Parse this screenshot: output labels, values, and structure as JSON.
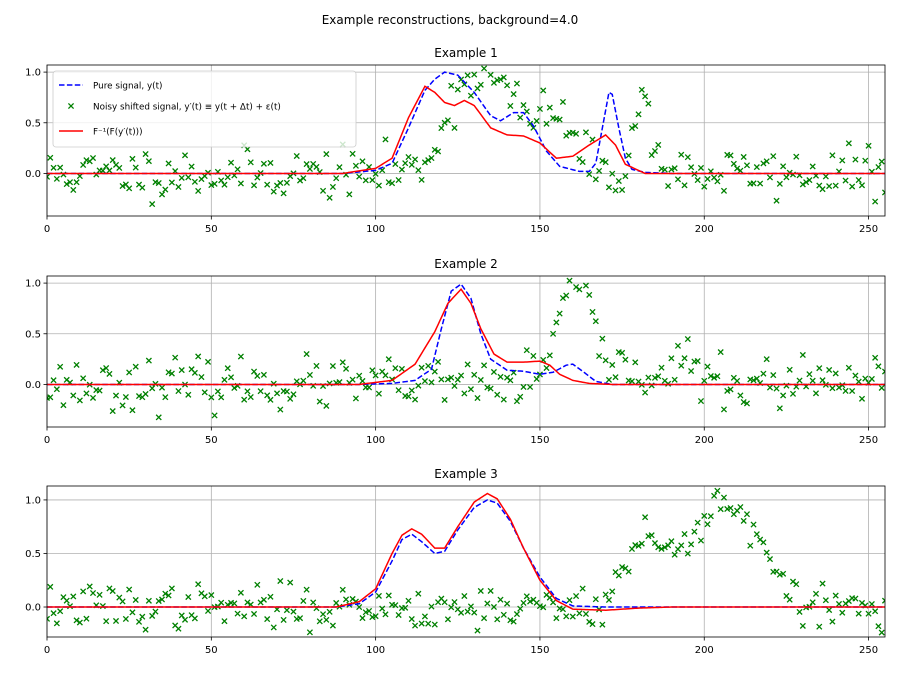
{
  "figure": {
    "suptitle": "Example reconstructions, background=4.0",
    "colors": {
      "pure": "#0000ff",
      "noisy": "#008000",
      "recon": "#ff0000",
      "grid": "#b0b0b0"
    }
  },
  "legend": {
    "location": "upper-left of first subplot",
    "entries": [
      {
        "label": "Pure signal, y(t)",
        "style": "dashed-line",
        "color": "#0000ff"
      },
      {
        "label": "Noisy shifted signal, y′(t) ≡ y(t + Δt) + ε(t)",
        "style": "x-marker",
        "color": "#008000"
      },
      {
        "label": "F⁻¹(F(y′(t)))",
        "style": "solid-line",
        "color": "#ff0000"
      }
    ]
  },
  "chart_data": [
    {
      "type": "line",
      "title": "Example 1",
      "xlim": [
        0,
        255
      ],
      "ylim": [
        -0.42,
        1.07
      ],
      "xticks": [
        0,
        50,
        100,
        150,
        200,
        250
      ],
      "yticks": [
        0.0,
        0.5,
        1.0
      ],
      "ytick_labels": [
        "0.0",
        "0.5",
        "1.0"
      ],
      "grid": true,
      "series": [
        {
          "name": "Pure signal, y(t)",
          "style": "dashed",
          "color": "#0000ff",
          "points": [
            [
              0,
              0
            ],
            [
              90,
              0
            ],
            [
              100,
              0.03
            ],
            [
              105,
              0.1
            ],
            [
              110,
              0.45
            ],
            [
              115,
              0.82
            ],
            [
              118,
              0.93
            ],
            [
              121,
              1.0
            ],
            [
              125,
              0.97
            ],
            [
              130,
              0.8
            ],
            [
              135,
              0.57
            ],
            [
              138,
              0.52
            ],
            [
              142,
              0.6
            ],
            [
              145,
              0.6
            ],
            [
              148,
              0.47
            ],
            [
              152,
              0.22
            ],
            [
              156,
              0.07
            ],
            [
              162,
              0.02
            ],
            [
              165,
              0.02
            ],
            [
              167,
              0.1
            ],
            [
              169,
              0.45
            ],
            [
              171,
              0.8
            ],
            [
              172,
              0.78
            ],
            [
              174,
              0.45
            ],
            [
              176,
              0.15
            ],
            [
              178,
              0.04
            ],
            [
              182,
              0.01
            ],
            [
              190,
              0
            ],
            [
              255,
              0
            ]
          ]
        },
        {
          "name": "F⁻¹(F(y′(t)))",
          "style": "solid",
          "color": "#ff0000",
          "points": [
            [
              0,
              0
            ],
            [
              90,
              0
            ],
            [
              100,
              0.05
            ],
            [
              105,
              0.15
            ],
            [
              110,
              0.55
            ],
            [
              115,
              0.86
            ],
            [
              118,
              0.8
            ],
            [
              121,
              0.7
            ],
            [
              124,
              0.67
            ],
            [
              127,
              0.72
            ],
            [
              130,
              0.67
            ],
            [
              135,
              0.45
            ],
            [
              140,
              0.38
            ],
            [
              145,
              0.37
            ],
            [
              150,
              0.3
            ],
            [
              155,
              0.15
            ],
            [
              160,
              0.17
            ],
            [
              165,
              0.28
            ],
            [
              170,
              0.38
            ],
            [
              173,
              0.28
            ],
            [
              176,
              0.09
            ],
            [
              182,
              0
            ],
            [
              195,
              0
            ],
            [
              255,
              0
            ]
          ]
        },
        {
          "name": "Noisy shifted signal, y′(t) ≡ y(t + Δt) + ε(t)",
          "style": "scatter",
          "color": "#008000",
          "model": "pure signal shifted right by 10, plus noise",
          "shift": 10,
          "noise_sd": 0.12,
          "seed": 11
        }
      ]
    },
    {
      "type": "line",
      "title": "Example 2",
      "xlim": [
        0,
        255
      ],
      "ylim": [
        -0.42,
        1.07
      ],
      "xticks": [
        0,
        50,
        100,
        150,
        200,
        250
      ],
      "yticks": [
        0.0,
        0.5,
        1.0
      ],
      "ytick_labels": [
        "0.0",
        "0.5",
        "1.0"
      ],
      "grid": true,
      "series": [
        {
          "name": "Pure signal, y(t)",
          "style": "dashed",
          "color": "#0000ff",
          "points": [
            [
              0,
              0
            ],
            [
              95,
              0
            ],
            [
              105,
              0.01
            ],
            [
              112,
              0.04
            ],
            [
              117,
              0.15
            ],
            [
              120,
              0.55
            ],
            [
              123,
              0.92
            ],
            [
              126,
              0.99
            ],
            [
              129,
              0.85
            ],
            [
              132,
              0.5
            ],
            [
              135,
              0.25
            ],
            [
              140,
              0.14
            ],
            [
              145,
              0.13
            ],
            [
              150,
              0.1
            ],
            [
              154,
              0.12
            ],
            [
              158,
              0.19
            ],
            [
              160,
              0.2
            ],
            [
              163,
              0.13
            ],
            [
              167,
              0.03
            ],
            [
              172,
              0
            ],
            [
              255,
              0
            ]
          ]
        },
        {
          "name": "F⁻¹(F(y′(t)))",
          "style": "solid",
          "color": "#ff0000",
          "points": [
            [
              0,
              0
            ],
            [
              95,
              0
            ],
            [
              105,
              0.04
            ],
            [
              112,
              0.2
            ],
            [
              118,
              0.52
            ],
            [
              122,
              0.8
            ],
            [
              126,
              0.94
            ],
            [
              129,
              0.8
            ],
            [
              132,
              0.55
            ],
            [
              136,
              0.3
            ],
            [
              140,
              0.22
            ],
            [
              145,
              0.22
            ],
            [
              150,
              0.23
            ],
            [
              153,
              0.19
            ],
            [
              156,
              0.1
            ],
            [
              160,
              0.04
            ],
            [
              165,
              0.01
            ],
            [
              172,
              0
            ],
            [
              255,
              0
            ]
          ]
        },
        {
          "name": "Noisy shifted signal, y′(t) ≡ y(t + Δt) + ε(t)",
          "style": "scatter",
          "color": "#008000",
          "model": "pure signal shifted right by 35, plus noise",
          "shift": 35,
          "noise_sd": 0.12,
          "seed": 23
        }
      ]
    },
    {
      "type": "line",
      "title": "Example 3",
      "xlim": [
        0,
        255
      ],
      "ylim": [
        -0.28,
        1.13
      ],
      "xticks": [
        0,
        50,
        100,
        150,
        200,
        250
      ],
      "yticks": [
        0.0,
        0.5,
        1.0
      ],
      "ytick_labels": [
        "0.0",
        "0.5",
        "1.0"
      ],
      "grid": true,
      "series": [
        {
          "name": "Pure signal, y(t)",
          "style": "dashed",
          "color": "#0000ff",
          "points": [
            [
              0,
              0
            ],
            [
              88,
              0
            ],
            [
              95,
              0.03
            ],
            [
              100,
              0.14
            ],
            [
              105,
              0.43
            ],
            [
              108,
              0.63
            ],
            [
              111,
              0.68
            ],
            [
              114,
              0.61
            ],
            [
              118,
              0.5
            ],
            [
              121,
              0.52
            ],
            [
              125,
              0.72
            ],
            [
              130,
              0.93
            ],
            [
              134,
              1.0
            ],
            [
              137,
              0.97
            ],
            [
              141,
              0.8
            ],
            [
              145,
              0.55
            ],
            [
              150,
              0.28
            ],
            [
              155,
              0.08
            ],
            [
              160,
              0.01
            ],
            [
              170,
              0
            ],
            [
              255,
              0
            ]
          ]
        },
        {
          "name": "F⁻¹(F(y′(t)))",
          "style": "solid",
          "color": "#ff0000",
          "points": [
            [
              0,
              0
            ],
            [
              88,
              0
            ],
            [
              95,
              0.05
            ],
            [
              100,
              0.17
            ],
            [
              105,
              0.5
            ],
            [
              108,
              0.67
            ],
            [
              111,
              0.73
            ],
            [
              114,
              0.68
            ],
            [
              118,
              0.55
            ],
            [
              121,
              0.55
            ],
            [
              125,
              0.75
            ],
            [
              130,
              0.98
            ],
            [
              134,
              1.06
            ],
            [
              137,
              1.01
            ],
            [
              141,
              0.82
            ],
            [
              145,
              0.55
            ],
            [
              150,
              0.25
            ],
            [
              155,
              0.06
            ],
            [
              160,
              -0.02
            ],
            [
              170,
              -0.03
            ],
            [
              180,
              -0.01
            ],
            [
              190,
              0
            ],
            [
              255,
              0
            ]
          ]
        },
        {
          "name": "Noisy shifted signal, y′(t) ≡ y(t + Δt) + ε(t)",
          "style": "scatter",
          "color": "#008000",
          "model": "pure signal shifted right by 72, plus noise",
          "shift": 72,
          "noise_sd": 0.1,
          "seed": 37
        }
      ]
    }
  ]
}
